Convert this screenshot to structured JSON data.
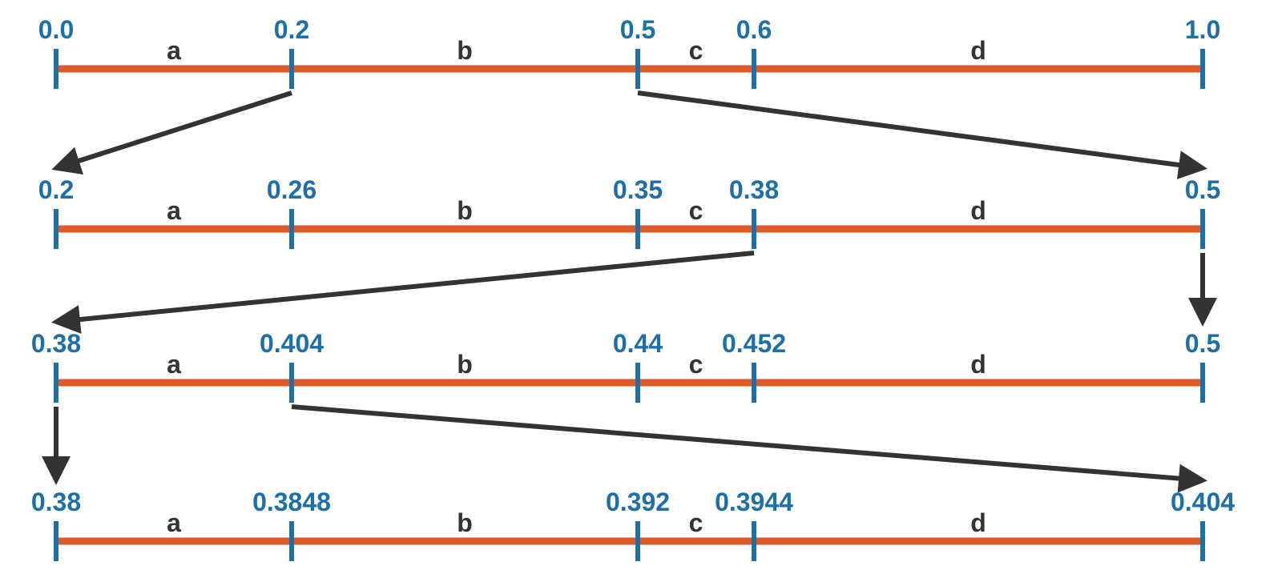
{
  "colors": {
    "bar": "#de5a2b",
    "tick": "#1d6fa8",
    "tick_label": "#1d6fa8",
    "segment_label": "#333333",
    "arrow": "#333333"
  },
  "segment_labels": [
    "a",
    "b",
    "c",
    "d"
  ],
  "rows": [
    {
      "ticks": [
        "0.0",
        "0.2",
        "0.5",
        "0.6",
        "1.0"
      ]
    },
    {
      "ticks": [
        "0.2",
        "0.26",
        "0.35",
        "0.38",
        "0.5"
      ]
    },
    {
      "ticks": [
        "0.38",
        "0.404",
        "0.44",
        "0.452",
        "0.5"
      ]
    },
    {
      "ticks": [
        "0.38",
        "0.3848",
        "0.392",
        "0.3944",
        "0.404"
      ]
    }
  ],
  "zoom_arrows": [
    {
      "from_row": 0,
      "from_tick": 1,
      "to_row": 1,
      "to_tick": 0
    },
    {
      "from_row": 0,
      "from_tick": 2,
      "to_row": 1,
      "to_tick": 4
    },
    {
      "from_row": 1,
      "from_tick": 3,
      "to_row": 2,
      "to_tick": 0
    },
    {
      "from_row": 1,
      "from_tick": 4,
      "to_row": 2,
      "to_tick": 4
    },
    {
      "from_row": 2,
      "from_tick": 0,
      "to_row": 3,
      "to_tick": 0
    },
    {
      "from_row": 2,
      "from_tick": 1,
      "to_row": 3,
      "to_tick": 4
    }
  ]
}
